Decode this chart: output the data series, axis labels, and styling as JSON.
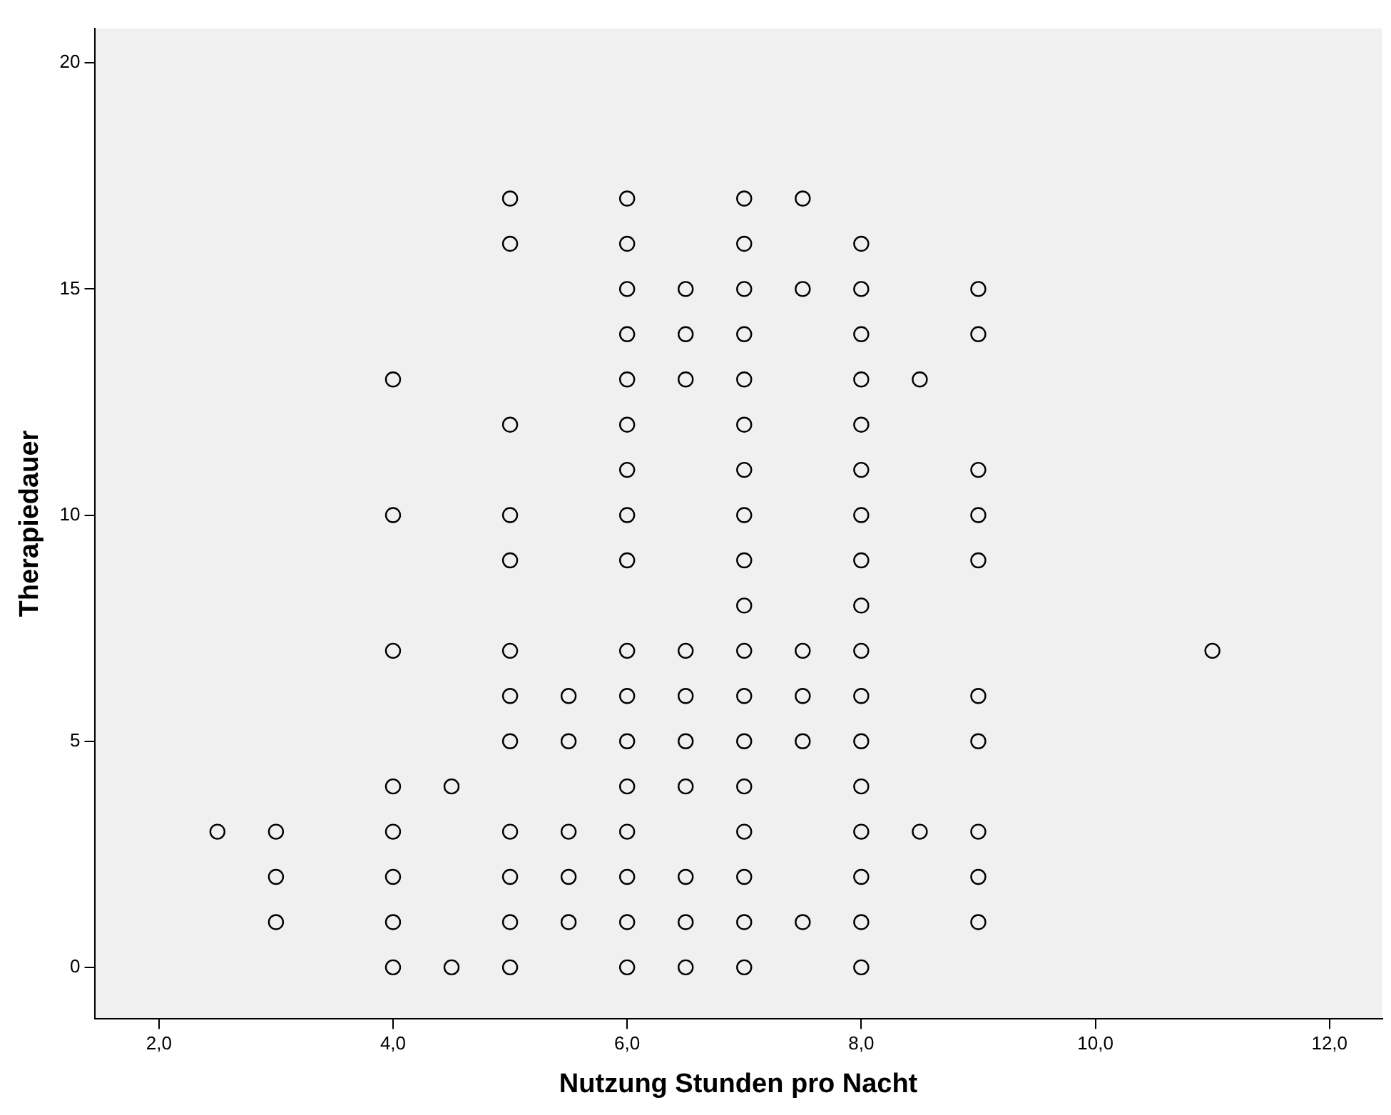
{
  "chart_data": {
    "type": "scatter",
    "xlabel": "Nutzung Stunden pro Nacht",
    "ylabel": "Therapiedauer",
    "xlim": [
      1.45,
      12.45
    ],
    "ylim": [
      -1.14,
      20.76
    ],
    "xticks": [
      {
        "value": 2,
        "label": "2,0"
      },
      {
        "value": 4,
        "label": "4,0"
      },
      {
        "value": 6,
        "label": "6,0"
      },
      {
        "value": 8,
        "label": "8,0"
      },
      {
        "value": 10,
        "label": "10,0"
      },
      {
        "value": 12,
        "label": "12,0"
      }
    ],
    "yticks": [
      0,
      5,
      10,
      15,
      20
    ],
    "grid": false,
    "legend": false,
    "marker": "circle",
    "series": [
      {
        "color": "#000000",
        "x": [
          2.5,
          3,
          3,
          3,
          4,
          4,
          4,
          4,
          4,
          4,
          4,
          4,
          4.5,
          4.5,
          5,
          5,
          5,
          5,
          5,
          5,
          5,
          5,
          5,
          5,
          5,
          5,
          5.5,
          5.5,
          5.5,
          5.5,
          5.5,
          6,
          6,
          6,
          6,
          6,
          6,
          6,
          6,
          6,
          6,
          6,
          6,
          6,
          6,
          6,
          6,
          6,
          6.5,
          6.5,
          6.5,
          6.5,
          6.5,
          6.5,
          6.5,
          6.5,
          6.5,
          6.5,
          7,
          7,
          7,
          7,
          7,
          7,
          7,
          7,
          7,
          7,
          7,
          7,
          7,
          7,
          7,
          7,
          7,
          7,
          7.5,
          7.5,
          7.5,
          7.5,
          7.5,
          7.5,
          8,
          8,
          8,
          8,
          8,
          8,
          8,
          8,
          8,
          8,
          8,
          8,
          8,
          8,
          8,
          8,
          8,
          8.5,
          8.5,
          9,
          9,
          9,
          9,
          9,
          9,
          9,
          9,
          9,
          9,
          11
        ],
        "values": [
          3,
          3,
          2,
          1,
          13,
          10,
          7,
          4,
          3,
          2,
          1,
          0,
          4,
          0,
          17,
          16,
          12,
          10,
          9,
          7,
          6,
          5,
          3,
          2,
          1,
          0,
          6,
          5,
          3,
          2,
          1,
          17,
          16,
          15,
          14,
          13,
          12,
          11,
          10,
          9,
          7,
          6,
          5,
          4,
          3,
          2,
          1,
          0,
          15,
          14,
          13,
          7,
          6,
          5,
          4,
          2,
          1,
          0,
          17,
          16,
          15,
          14,
          13,
          12,
          11,
          10,
          9,
          8,
          7,
          6,
          5,
          4,
          3,
          2,
          1,
          0,
          17,
          15,
          7,
          6,
          5,
          1,
          16,
          15,
          14,
          13,
          12,
          11,
          10,
          9,
          8,
          7,
          6,
          5,
          4,
          3,
          2,
          1,
          0,
          13,
          3,
          15,
          14,
          11,
          10,
          9,
          6,
          5,
          3,
          2,
          1,
          7
        ]
      }
    ]
  }
}
